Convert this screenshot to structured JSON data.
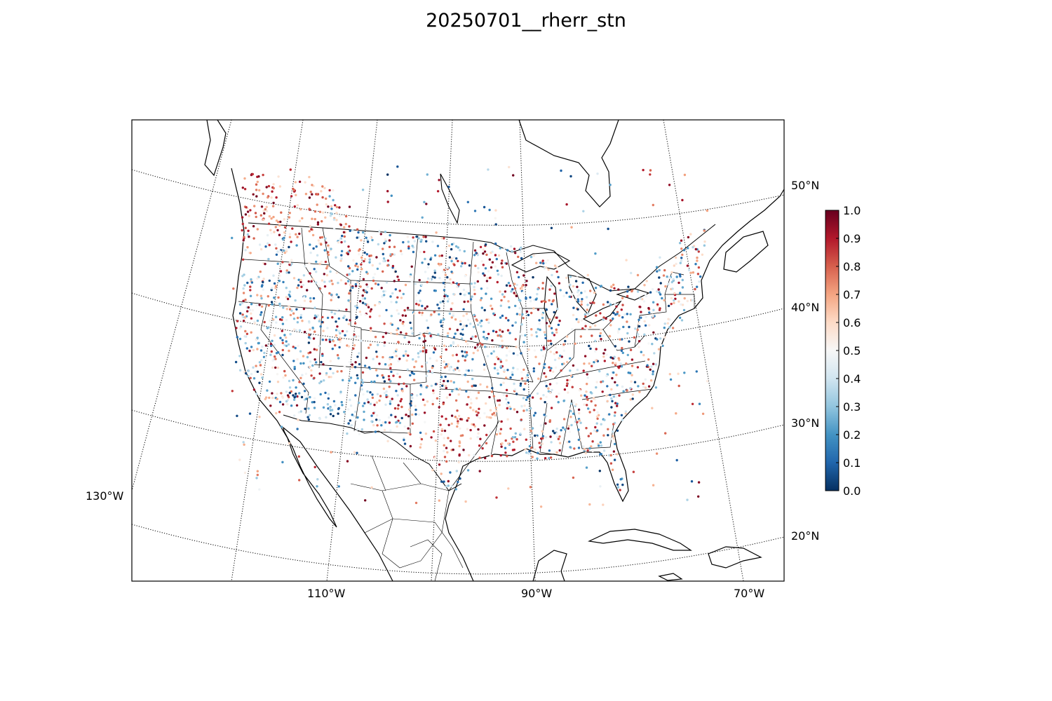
{
  "title": "20250701__rherr_stn",
  "map": {
    "projection": "Lambert conformal conic",
    "meridians": [
      {
        "lon": -130,
        "label": "130°W"
      },
      {
        "lon": -110,
        "label": "110°W"
      },
      {
        "lon": -90,
        "label": "90°W"
      },
      {
        "lon": -70,
        "label": "70°W"
      }
    ],
    "parallels": [
      {
        "lat": 20,
        "label": "20°N"
      },
      {
        "lat": 30,
        "label": "30°N"
      },
      {
        "lat": 40,
        "label": "40°N"
      },
      {
        "lat": 50,
        "label": "50°N"
      }
    ],
    "graticule_style": "dotted",
    "features": [
      "coastlines",
      "country borders",
      "state boundaries",
      "lakes"
    ],
    "marker": "station dots colored by value"
  },
  "colorbar": {
    "colormap": "RdBu_r",
    "range": [
      0.0,
      1.0
    ],
    "ticks": [
      "0.0",
      "0.1",
      "0.2",
      "0.3",
      "0.4",
      "0.5",
      "0.6",
      "0.7",
      "0.8",
      "0.9",
      "1.0"
    ],
    "low_color": "#053061",
    "mid_color": "#f7f7f7",
    "high_color": "#67001f"
  }
}
